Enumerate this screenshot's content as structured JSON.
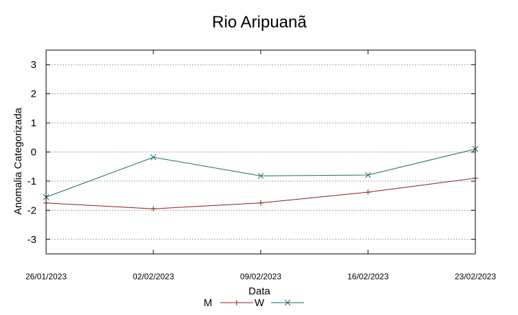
{
  "chart_data": {
    "type": "line",
    "title": "Rio Aripuanã",
    "xlabel": "Data",
    "ylabel": "Anomalia Categorizada",
    "x": [
      "26/01/2023",
      "02/02/2023",
      "09/02/2023",
      "16/02/2023",
      "23/02/2023"
    ],
    "ylim": [
      -3.5,
      3.5
    ],
    "yticks": [
      -3,
      -2,
      -1,
      0,
      1,
      2,
      3
    ],
    "ytick_labels": [
      "-3",
      "-2",
      "-1",
      "0",
      "1",
      "2",
      "3"
    ],
    "grid": true,
    "legend_position": "bottom-center",
    "series": [
      {
        "name": "M",
        "color": "#8b1a1a",
        "marker": "plus",
        "values": [
          -1.75,
          -1.95,
          -1.75,
          -1.38,
          -0.9
        ]
      },
      {
        "name": "W",
        "color": "#1a6b6b",
        "marker": "x",
        "values": [
          -1.55,
          -0.18,
          -0.82,
          -0.79,
          0.1
        ]
      }
    ]
  }
}
